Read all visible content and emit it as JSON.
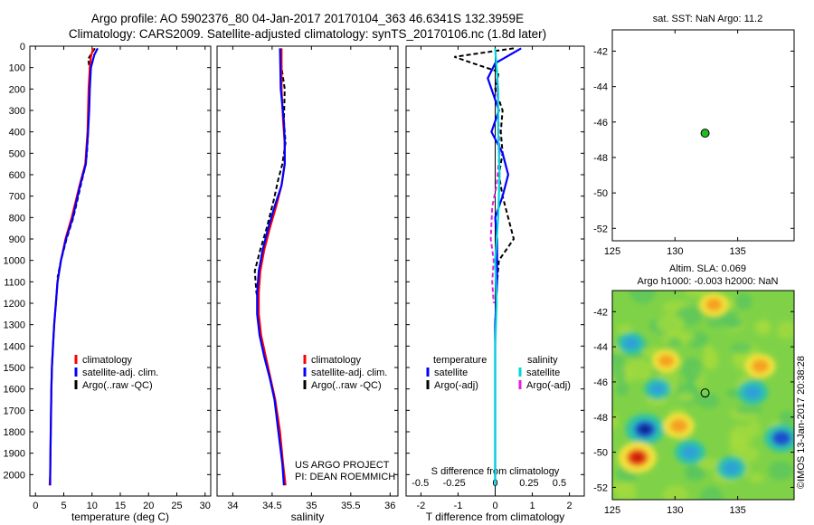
{
  "title_line1": "Argo profile: AO 5902376_80 04-Jan-2017 20170104_363 46.6341S 132.3959E",
  "title_line2": "Climatology: CARS2009. Satellite-adjusted climatology: synTS_20170106.nc (1.8d later)",
  "sst_title": "sat. SST: NaN Argo: 11.2",
  "sla_title1": "Altim. SLA: 0.069",
  "sla_title2": "Argo h1000: -0.003 h2000: NaN",
  "stamp": "©IMOS 13-Jan-2017 20:38:28",
  "colors": {
    "climatology": "#ff0000",
    "satellite": "#0000ff",
    "argo": "#000000",
    "sal_satellite": "#00d8d8",
    "sal_argo": "#e020e0",
    "marker": "#22bb22"
  },
  "chart_data": [
    {
      "type": "line",
      "id": "temperature",
      "xlabel": "temperature (deg C)",
      "ylabel": "",
      "xlim": [
        -1,
        31
      ],
      "ylim": [
        2100,
        0
      ],
      "xticks": [
        0,
        5,
        10,
        15,
        20,
        25,
        30
      ],
      "yticks": [
        0,
        100,
        200,
        300,
        400,
        500,
        600,
        700,
        800,
        900,
        1000,
        1100,
        1200,
        1300,
        1400,
        1500,
        1600,
        1700,
        1800,
        1900,
        2000
      ],
      "legend": [
        "climatology",
        "satellite-adj. clim.",
        "Argo(..raw -QC)"
      ],
      "series": [
        {
          "name": "climatology",
          "style": "solid",
          "color": "#ff0000",
          "x": [
            10.2,
            9.8,
            9.6,
            9.4,
            9.2,
            8.8,
            7.8,
            6.4,
            5.3,
            4.5,
            3.9,
            3.6,
            3.3,
            3.1,
            2.9,
            2.8,
            2.7,
            2.6,
            2.5
          ],
          "y": [
            10,
            50,
            100,
            200,
            400,
            550,
            650,
            800,
            900,
            1000,
            1100,
            1200,
            1300,
            1400,
            1500,
            1600,
            1800,
            2000,
            2050
          ]
        },
        {
          "name": "satellite-adj. clim.",
          "style": "solid",
          "color": "#0000ff",
          "x": [
            11.0,
            10.4,
            9.8,
            9.6,
            9.5,
            9.3,
            8.9,
            7.9,
            6.6,
            5.4,
            4.5,
            3.9,
            3.6,
            3.3,
            3.1,
            2.9,
            2.8,
            2.7,
            2.6,
            2.6
          ],
          "y": [
            10,
            40,
            100,
            200,
            300,
            400,
            550,
            650,
            800,
            900,
            1000,
            1100,
            1200,
            1300,
            1400,
            1500,
            1600,
            1800,
            2000,
            2050
          ]
        },
        {
          "name": "Argo(..raw -QC)",
          "style": "dash",
          "color": "#000000",
          "x": [
            10.5,
            9.3,
            9.7,
            9.5,
            9.4,
            9.3,
            9.1,
            8.9,
            8.0,
            6.7,
            5.5,
            4.5,
            3.9
          ],
          "y": [
            10,
            60,
            120,
            200,
            300,
            400,
            500,
            550,
            650,
            800,
            900,
            1000,
            1080
          ]
        }
      ]
    },
    {
      "type": "line",
      "id": "salinity",
      "xlabel": "salinity",
      "ylabel": "",
      "xlim": [
        33.8,
        36.1
      ],
      "ylim": [
        2100,
        0
      ],
      "xticks": [
        34,
        34.5,
        35,
        35.5,
        36
      ],
      "legend": [
        "climatology",
        "satellite-adj. clim.",
        "Argo(..raw -QC)"
      ],
      "annotation": [
        "US ARGO PROJECT",
        "PI: DEAN ROEMMICH"
      ],
      "series": [
        {
          "name": "climatology",
          "style": "solid",
          "color": "#ff0000",
          "x": [
            34.62,
            34.62,
            34.64,
            34.66,
            34.66,
            34.62,
            34.55,
            34.47,
            34.4,
            34.35,
            34.33,
            34.33,
            34.36,
            34.42,
            34.48,
            34.54,
            34.6,
            34.64,
            34.67
          ],
          "y": [
            10,
            200,
            350,
            450,
            550,
            650,
            750,
            850,
            950,
            1050,
            1150,
            1250,
            1350,
            1450,
            1550,
            1650,
            1800,
            1950,
            2050
          ]
        },
        {
          "name": "satellite-adj. clim.",
          "style": "solid",
          "color": "#0000ff",
          "x": [
            34.6,
            34.61,
            34.65,
            34.66,
            34.66,
            34.62,
            34.53,
            34.45,
            34.38,
            34.33,
            34.31,
            34.31,
            34.34,
            34.4,
            34.47,
            34.53,
            34.58,
            34.63,
            34.65
          ],
          "y": [
            10,
            200,
            350,
            450,
            550,
            650,
            750,
            850,
            950,
            1050,
            1150,
            1250,
            1350,
            1450,
            1550,
            1650,
            1800,
            1950,
            2050
          ]
        },
        {
          "name": "Argo(..raw -QC)",
          "style": "dash",
          "color": "#000000",
          "x": [
            34.6,
            34.62,
            34.66,
            34.65,
            34.67,
            34.63,
            34.58,
            34.52,
            34.43,
            34.35,
            34.28,
            34.3,
            34.33
          ],
          "y": [
            10,
            100,
            200,
            350,
            450,
            550,
            620,
            720,
            850,
            950,
            1050,
            1150,
            1200
          ]
        }
      ]
    },
    {
      "type": "line",
      "id": "difference",
      "xlabel": "T difference from climatology",
      "top_label": "S difference from climatology",
      "xlim": [
        -2.4,
        2.4
      ],
      "ylim": [
        2100,
        0
      ],
      "xticks": [
        -2,
        -1,
        0,
        1,
        2
      ],
      "top_ticks": [
        "-0.5",
        "-0.25",
        "0",
        "0.25",
        "0.5"
      ],
      "legend": [
        "temperature",
        "satellite",
        "Argo(-adj)",
        "salinity",
        "satellite",
        "Argo(-adj)"
      ],
      "series": [
        {
          "name": "satellite",
          "group": "temperature",
          "style": "solid",
          "color": "#0000ff",
          "x": [
            0.7,
            0.0,
            -0.2,
            0.1,
            -0.1,
            0.2,
            0.35,
            0.2,
            0.0,
            0.05,
            0.05,
            0.0,
            0.0,
            0.0
          ],
          "y": [
            10,
            80,
            150,
            300,
            400,
            500,
            600,
            700,
            800,
            900,
            1100,
            1300,
            1600,
            2050
          ]
        },
        {
          "name": "Argo(-adj)",
          "group": "temperature",
          "style": "dash",
          "color": "#000000",
          "x": [
            0.5,
            -1.1,
            -0.6,
            0.1,
            0.0,
            0.2,
            0.15,
            0.2,
            0.1,
            0.2,
            0.5,
            0.1,
            0.05,
            0.0
          ],
          "y": [
            10,
            50,
            80,
            120,
            200,
            300,
            400,
            500,
            600,
            700,
            900,
            1000,
            1100,
            1300
          ]
        },
        {
          "name": "satellite",
          "group": "salinity",
          "style": "solid",
          "color": "#00d8d8",
          "x": [
            0.0,
            0.02,
            0.02,
            0.03,
            0.02,
            0.0,
            0.01,
            0.0,
            0.0,
            0.0
          ],
          "y": [
            10,
            200,
            400,
            600,
            800,
            1000,
            1200,
            1400,
            1700,
            2050
          ]
        },
        {
          "name": "Argo(-adj)",
          "group": "salinity",
          "style": "dash",
          "color": "#e020e0",
          "x": [
            0.01,
            0.02,
            0.03,
            0.01,
            -0.02,
            -0.03,
            -0.01,
            -0.02,
            -0.01
          ],
          "y": [
            150,
            300,
            500,
            650,
            750,
            900,
            1000,
            1100,
            1200
          ]
        }
      ]
    },
    {
      "type": "scatter",
      "id": "sst_map",
      "xlim": [
        125,
        139.5
      ],
      "ylim": [
        -52.7,
        -40.8
      ],
      "xticks": [
        125,
        130,
        135
      ],
      "yticks": [
        -42,
        -44,
        -46,
        -48,
        -50,
        -52
      ],
      "points": [
        {
          "x": 132.4,
          "y": -46.63
        }
      ]
    },
    {
      "type": "heatmap",
      "id": "sla_map",
      "xlim": [
        125,
        139.5
      ],
      "ylim": [
        -52.7,
        -40.8
      ],
      "xticks": [
        125,
        130,
        135
      ],
      "yticks": [
        -42,
        -44,
        -46,
        -48,
        -50,
        -52
      ],
      "points": [
        {
          "x": 132.4,
          "y": -46.63
        }
      ],
      "blobs": [
        {
          "x": 127.6,
          "y": -48.7,
          "v": -0.9
        },
        {
          "x": 127.0,
          "y": -50.3,
          "v": 0.9
        },
        {
          "x": 131.2,
          "y": -50.0,
          "v": -0.5
        },
        {
          "x": 138.5,
          "y": -49.2,
          "v": -0.7
        },
        {
          "x": 136.2,
          "y": -46.6,
          "v": -0.5
        },
        {
          "x": 136.8,
          "y": -45.1,
          "v": 0.5
        },
        {
          "x": 133.1,
          "y": -41.6,
          "v": 0.45
        },
        {
          "x": 129.3,
          "y": -44.8,
          "v": 0.4
        },
        {
          "x": 126.5,
          "y": -43.8,
          "v": -0.35
        },
        {
          "x": 130.3,
          "y": -48.5,
          "v": 0.55
        },
        {
          "x": 134.5,
          "y": -50.9,
          "v": -0.45
        },
        {
          "x": 128.6,
          "y": -46.4,
          "v": -0.3
        }
      ]
    }
  ]
}
